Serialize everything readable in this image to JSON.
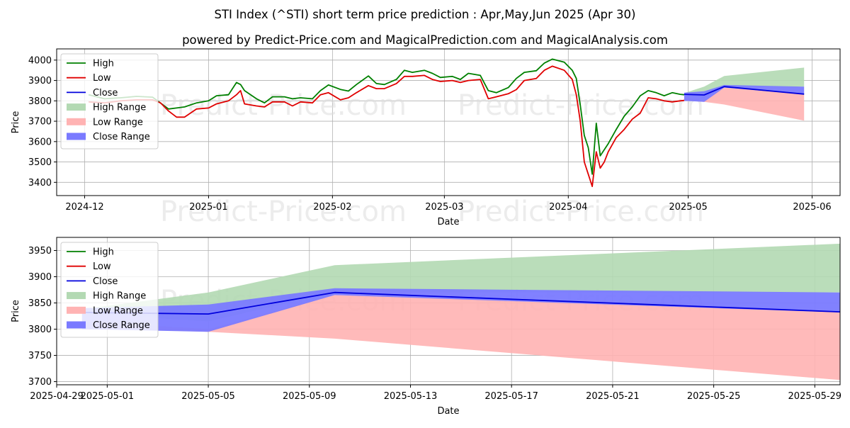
{
  "title_line1": "STI Index (^STI) short term price prediction : Apr,May,Jun 2025 (Apr 30)",
  "title_line2": "powered by Predict-Price.com and MagicalPrediction.com and MagicalAnalysis.com",
  "watermark": "Predict-Price.com",
  "colors": {
    "high": "#008000",
    "low": "#e00000",
    "close": "#0000dd",
    "high_range": "#b3d9b3",
    "low_range": "#ffb3b3",
    "close_range": "#7a7aff"
  },
  "chart_data": [
    {
      "type": "line",
      "xlabel": "Date",
      "ylabel": "Price",
      "xlim": [
        "2024-11-24",
        "2025-06-08"
      ],
      "ylim": [
        3335,
        4055
      ],
      "yticks": [
        3400,
        3500,
        3600,
        3700,
        3800,
        3900,
        4000
      ],
      "xticks": [
        "2024-12",
        "2025-01",
        "2025-02",
        "2025-03",
        "2025-04",
        "2025-05",
        "2025-06"
      ],
      "grid": true,
      "legend": {
        "position": "top-left",
        "entries": [
          "High",
          "Low",
          "Close",
          "High Range",
          "Low Range",
          "Close Range"
        ]
      },
      "series": [
        {
          "name": "High",
          "x": [
            "2024-12-02",
            "2024-12-06",
            "2024-12-10",
            "2024-12-14",
            "2024-12-18",
            "2024-12-22",
            "2024-12-26",
            "2024-12-29",
            "2025-01-01",
            "2025-01-03",
            "2025-01-06",
            "2025-01-08",
            "2025-01-09",
            "2025-01-10",
            "2025-01-13",
            "2025-01-15",
            "2025-01-17",
            "2025-01-20",
            "2025-01-22",
            "2025-01-24",
            "2025-01-27",
            "2025-01-29",
            "2025-01-31",
            "2025-02-03",
            "2025-02-05",
            "2025-02-07",
            "2025-02-10",
            "2025-02-12",
            "2025-02-14",
            "2025-02-17",
            "2025-02-19",
            "2025-02-21",
            "2025-02-24",
            "2025-02-26",
            "2025-02-28",
            "2025-03-03",
            "2025-03-05",
            "2025-03-07",
            "2025-03-10",
            "2025-03-12",
            "2025-03-14",
            "2025-03-17",
            "2025-03-19",
            "2025-03-21",
            "2025-03-24",
            "2025-03-26",
            "2025-03-28",
            "2025-03-31",
            "2025-04-02",
            "2025-04-03",
            "2025-04-04",
            "2025-04-05",
            "2025-04-06",
            "2025-04-07",
            "2025-04-08",
            "2025-04-09",
            "2025-04-10",
            "2025-04-11",
            "2025-04-13",
            "2025-04-15",
            "2025-04-17",
            "2025-04-19",
            "2025-04-21",
            "2025-04-23",
            "2025-04-25",
            "2025-04-27",
            "2025-04-29",
            "2025-04-30"
          ],
          "y": [
            3830,
            3810,
            3815,
            3822,
            3818,
            3760,
            3770,
            3790,
            3800,
            3825,
            3830,
            3890,
            3880,
            3850,
            3810,
            3790,
            3820,
            3820,
            3810,
            3815,
            3810,
            3850,
            3878,
            3856,
            3848,
            3880,
            3922,
            3885,
            3880,
            3905,
            3950,
            3940,
            3950,
            3935,
            3915,
            3920,
            3905,
            3935,
            3925,
            3850,
            3840,
            3865,
            3910,
            3940,
            3948,
            3985,
            4005,
            3990,
            3950,
            3910,
            3780,
            3630,
            3570,
            3440,
            3690,
            3530,
            3560,
            3590,
            3660,
            3725,
            3770,
            3825,
            3850,
            3840,
            3825,
            3840,
            3832,
            3830
          ]
        },
        {
          "name": "Low",
          "x": [
            "2024-12-02",
            "2024-12-06",
            "2024-12-10",
            "2024-12-14",
            "2024-12-18",
            "2024-12-20",
            "2024-12-22",
            "2024-12-24",
            "2024-12-26",
            "2024-12-29",
            "2025-01-01",
            "2025-01-03",
            "2025-01-06",
            "2025-01-08",
            "2025-01-09",
            "2025-01-10",
            "2025-01-13",
            "2025-01-15",
            "2025-01-17",
            "2025-01-20",
            "2025-01-22",
            "2025-01-24",
            "2025-01-27",
            "2025-01-29",
            "2025-01-31",
            "2025-02-03",
            "2025-02-05",
            "2025-02-07",
            "2025-02-10",
            "2025-02-12",
            "2025-02-14",
            "2025-02-17",
            "2025-02-19",
            "2025-02-21",
            "2025-02-24",
            "2025-02-26",
            "2025-02-28",
            "2025-03-03",
            "2025-03-05",
            "2025-03-07",
            "2025-03-10",
            "2025-03-12",
            "2025-03-14",
            "2025-03-17",
            "2025-03-19",
            "2025-03-21",
            "2025-03-24",
            "2025-03-26",
            "2025-03-28",
            "2025-03-31",
            "2025-04-02",
            "2025-04-03",
            "2025-04-04",
            "2025-04-05",
            "2025-04-06",
            "2025-04-07",
            "2025-04-08",
            "2025-04-09",
            "2025-04-10",
            "2025-04-11",
            "2025-04-13",
            "2025-04-15",
            "2025-04-17",
            "2025-04-19",
            "2025-04-21",
            "2025-04-23",
            "2025-04-25",
            "2025-04-27",
            "2025-04-29",
            "2025-04-30"
          ],
          "y": [
            3795,
            3790,
            3800,
            3805,
            3805,
            3790,
            3750,
            3720,
            3720,
            3760,
            3765,
            3785,
            3800,
            3830,
            3850,
            3785,
            3775,
            3770,
            3795,
            3795,
            3775,
            3795,
            3790,
            3830,
            3840,
            3805,
            3815,
            3840,
            3875,
            3860,
            3860,
            3885,
            3920,
            3920,
            3925,
            3905,
            3895,
            3900,
            3890,
            3900,
            3905,
            3810,
            3820,
            3835,
            3855,
            3900,
            3910,
            3950,
            3970,
            3950,
            3905,
            3830,
            3700,
            3500,
            3440,
            3380,
            3550,
            3470,
            3500,
            3550,
            3620,
            3660,
            3710,
            3740,
            3815,
            3810,
            3800,
            3795,
            3800,
            3802
          ]
        },
        {
          "name": "Close",
          "x": [
            "2025-04-30",
            "2025-05-05",
            "2025-05-10",
            "2025-05-30"
          ],
          "y": [
            3832,
            3829,
            3870,
            3833
          ]
        }
      ],
      "ranges": [
        {
          "name": "High Range",
          "x": [
            "2025-04-30",
            "2025-05-05",
            "2025-05-10",
            "2025-05-30"
          ],
          "upper": [
            3838,
            3870,
            3922,
            3963
          ],
          "lower": [
            3830,
            3815,
            3870,
            3870
          ]
        },
        {
          "name": "Low Range",
          "x": [
            "2025-04-30",
            "2025-05-05",
            "2025-05-10",
            "2025-05-30"
          ],
          "upper": [
            3815,
            3800,
            3865,
            3835
          ],
          "lower": [
            3802,
            3795,
            3782,
            3703
          ]
        },
        {
          "name": "Close Range",
          "x": [
            "2025-04-30",
            "2025-05-05",
            "2025-05-10",
            "2025-05-30"
          ],
          "upper": [
            3840,
            3847,
            3878,
            3870
          ],
          "lower": [
            3800,
            3795,
            3865,
            3832
          ]
        }
      ]
    },
    {
      "type": "line",
      "xlabel": "Date",
      "ylabel": "Price",
      "xlim": [
        "2025-04-29",
        "2025-05-30"
      ],
      "ylim": [
        3694,
        3975
      ],
      "yticks": [
        3700,
        3750,
        3800,
        3850,
        3900,
        3950
      ],
      "xticks": [
        "2025-04-29",
        "2025-05-01",
        "2025-05-05",
        "2025-05-09",
        "2025-05-13",
        "2025-05-17",
        "2025-05-21",
        "2025-05-25",
        "2025-05-29"
      ],
      "grid": true,
      "legend": {
        "position": "top-left",
        "entries": [
          "High",
          "Low",
          "Close",
          "High Range",
          "Low Range",
          "Close Range"
        ]
      },
      "series": [
        {
          "name": "Close",
          "x": [
            "2025-04-30",
            "2025-05-05",
            "2025-05-10",
            "2025-05-30"
          ],
          "y": [
            3832,
            3829,
            3870,
            3833
          ]
        }
      ],
      "ranges": [
        {
          "name": "High Range",
          "x": [
            "2025-04-30",
            "2025-05-05",
            "2025-05-10",
            "2025-05-30"
          ],
          "upper": [
            3838,
            3870,
            3922,
            3963
          ],
          "lower": [
            3830,
            3815,
            3870,
            3870
          ]
        },
        {
          "name": "Low Range",
          "x": [
            "2025-04-30",
            "2025-05-05",
            "2025-05-10",
            "2025-05-30"
          ],
          "upper": [
            3815,
            3800,
            3865,
            3835
          ],
          "lower": [
            3802,
            3795,
            3782,
            3703
          ]
        },
        {
          "name": "Close Range",
          "x": [
            "2025-04-30",
            "2025-05-05",
            "2025-05-10",
            "2025-05-30"
          ],
          "upper": [
            3840,
            3847,
            3878,
            3870
          ],
          "lower": [
            3800,
            3795,
            3865,
            3832
          ]
        }
      ]
    }
  ]
}
